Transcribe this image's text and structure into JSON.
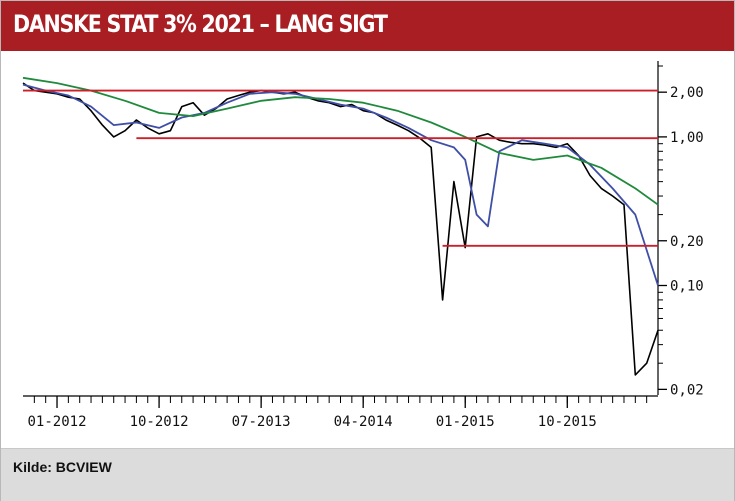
{
  "header": {
    "title": "DANSKE STAT 3% 2021 – LANG SIGT"
  },
  "footer": {
    "source": "Kilde: BCVIEW"
  },
  "colors": {
    "header_bg": "#a91e23",
    "price": "#000000",
    "short_ma": "#3f4fa6",
    "long_ma": "#1f8a3c",
    "level_lines": "#cc1f27",
    "footer_bg": "#dcdcdc"
  },
  "chart_data": {
    "type": "line",
    "title": "DANSKE STAT 3% 2021 – LANG SIGT",
    "xlabel": "",
    "ylabel": "",
    "y_scale": "log",
    "ylim": [
      0.0195,
      3.0
    ],
    "xlim": [
      "2011-10",
      "2016-06"
    ],
    "x_ticks": [
      "01-2012",
      "10-2012",
      "07-2013",
      "04-2014",
      "01-2015",
      "10-2015"
    ],
    "y_ticks": [
      {
        "value": 2.0,
        "label": "2,00"
      },
      {
        "value": 1.0,
        "label": "1,00"
      },
      {
        "value": 0.2,
        "label": "0,20"
      },
      {
        "value": 0.1,
        "label": "0,10"
      },
      {
        "value": 0.02,
        "label": "0,02"
      }
    ],
    "grid": false,
    "series": [
      {
        "style": "price",
        "x": [
          "2011-10",
          "2011-11",
          "2011-12",
          "2012-01",
          "2012-02",
          "2012-03",
          "2012-04",
          "2012-05",
          "2012-06",
          "2012-07",
          "2012-08",
          "2012-09",
          "2012-10",
          "2012-11",
          "2012-12",
          "2013-01",
          "2013-02",
          "2013-03",
          "2013-04",
          "2013-05",
          "2013-06",
          "2013-07",
          "2013-08",
          "2013-09",
          "2013-10",
          "2013-11",
          "2013-12",
          "2014-01",
          "2014-02",
          "2014-03",
          "2014-04",
          "2014-05",
          "2014-06",
          "2014-07",
          "2014-08",
          "2014-09",
          "2014-10",
          "2014-11",
          "2014-12",
          "2015-01",
          "2015-02",
          "2015-03",
          "2015-04",
          "2015-05",
          "2015-06",
          "2015-07",
          "2015-08",
          "2015-09",
          "2015-10",
          "2015-11",
          "2015-12",
          "2016-01",
          "2016-02",
          "2016-03",
          "2016-04",
          "2016-05",
          "2016-06"
        ],
        "values": [
          2.3,
          2.05,
          2.0,
          1.95,
          1.85,
          1.8,
          1.5,
          1.2,
          1.0,
          1.1,
          1.3,
          1.15,
          1.05,
          1.1,
          1.6,
          1.7,
          1.4,
          1.55,
          1.8,
          1.9,
          2.0,
          2.05,
          2.0,
          1.95,
          2.0,
          1.85,
          1.75,
          1.7,
          1.6,
          1.65,
          1.5,
          1.45,
          1.3,
          1.2,
          1.1,
          0.98,
          0.85,
          0.08,
          0.5,
          0.18,
          1.0,
          1.05,
          0.95,
          0.92,
          0.9,
          0.9,
          0.88,
          0.85,
          0.9,
          0.75,
          0.55,
          0.45,
          0.4,
          0.35,
          0.025,
          0.03,
          0.05
        ]
      },
      {
        "style": "short_ma",
        "x": [
          "2011-10",
          "2011-12",
          "2012-02",
          "2012-04",
          "2012-06",
          "2012-08",
          "2012-10",
          "2012-12",
          "2013-02",
          "2013-04",
          "2013-06",
          "2013-08",
          "2013-10",
          "2013-12",
          "2014-02",
          "2014-04",
          "2014-06",
          "2014-08",
          "2014-10",
          "2014-12",
          "2015-01",
          "2015-02",
          "2015-03",
          "2015-04",
          "2015-06",
          "2015-08",
          "2015-10",
          "2015-12",
          "2016-02",
          "2016-04",
          "2016-06"
        ],
        "values": [
          2.25,
          2.05,
          1.9,
          1.6,
          1.2,
          1.25,
          1.15,
          1.35,
          1.45,
          1.7,
          1.95,
          2.0,
          1.95,
          1.8,
          1.65,
          1.55,
          1.35,
          1.15,
          0.95,
          0.85,
          0.7,
          0.3,
          0.25,
          0.8,
          0.95,
          0.9,
          0.85,
          0.65,
          0.45,
          0.3,
          0.1
        ]
      },
      {
        "style": "long_ma",
        "x": [
          "2011-10",
          "2012-01",
          "2012-04",
          "2012-07",
          "2012-10",
          "2013-01",
          "2013-04",
          "2013-07",
          "2013-10",
          "2014-01",
          "2014-04",
          "2014-07",
          "2014-10",
          "2015-01",
          "2015-04",
          "2015-07",
          "2015-10",
          "2016-01",
          "2016-04",
          "2016-06"
        ],
        "values": [
          2.5,
          2.3,
          2.05,
          1.75,
          1.45,
          1.38,
          1.55,
          1.75,
          1.85,
          1.8,
          1.7,
          1.5,
          1.25,
          1.0,
          0.78,
          0.7,
          0.75,
          0.62,
          0.45,
          0.35
        ]
      }
    ],
    "reference_lines": [
      {
        "value": 2.05,
        "x_start": "2011-10",
        "x_end": "2016-06"
      },
      {
        "value": 0.98,
        "x_start": "2012-08",
        "x_end": "2016-06"
      },
      {
        "value": 0.185,
        "x_start": "2014-11",
        "x_end": "2016-06"
      }
    ]
  }
}
